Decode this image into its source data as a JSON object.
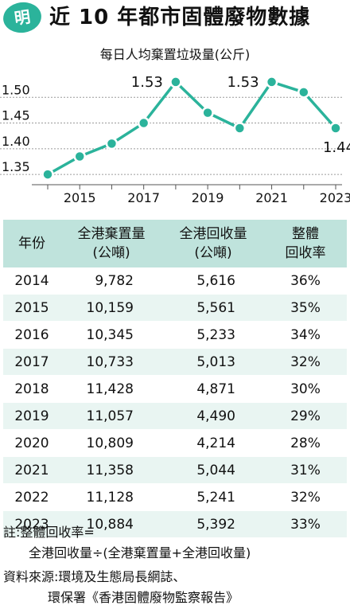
{
  "header": {
    "badge": "明",
    "title": "近 10 年都市固體廢物數據"
  },
  "chart_data": {
    "type": "line",
    "title": "每日人均棄置垃圾量(公斤)",
    "x": [
      2014,
      2015,
      2016,
      2017,
      2018,
      2019,
      2020,
      2021,
      2022,
      2023
    ],
    "values": [
      1.35,
      1.385,
      1.41,
      1.45,
      1.53,
      1.47,
      1.44,
      1.53,
      1.51,
      1.44
    ],
    "data_labels": [
      {
        "x": 2018,
        "label": "1.53"
      },
      {
        "x": 2021,
        "label": "1.53"
      },
      {
        "x": 2023,
        "label": "1.44"
      }
    ],
    "x_ticks": [
      "2015",
      "2017",
      "2019",
      "2021",
      "2023"
    ],
    "y_ticks": [
      "1.35",
      "1.40",
      "1.45",
      "1.50"
    ],
    "ylim": [
      1.33,
      1.55
    ],
    "grid": "horizontal",
    "line_color": "#2bb39b",
    "marker_fill": "#2bb39b",
    "marker_stroke": "#ffffff"
  },
  "table": {
    "headers": [
      [
        "年份"
      ],
      [
        "全港棄置量",
        "(公噸)"
      ],
      [
        "全港回收量",
        "(公噸)"
      ],
      [
        "整體",
        "回收率"
      ]
    ],
    "rows": [
      [
        "2014",
        "9,782",
        "5,616",
        "36%"
      ],
      [
        "2015",
        "10,159",
        "5,561",
        "35%"
      ],
      [
        "2016",
        "10,345",
        "5,233",
        "34%"
      ],
      [
        "2017",
        "10,733",
        "5,013",
        "32%"
      ],
      [
        "2018",
        "11,428",
        "4,871",
        "30%"
      ],
      [
        "2019",
        "11,057",
        "4,490",
        "29%"
      ],
      [
        "2020",
        "10,809",
        "4,214",
        "28%"
      ],
      [
        "2021",
        "11,358",
        "5,044",
        "31%"
      ],
      [
        "2022",
        "11,128",
        "5,241",
        "32%"
      ],
      [
        "2023",
        "10,884",
        "5,392",
        "33%"
      ]
    ],
    "header_bg": "#bfe3dc",
    "stripe_bg": "#e9f5f2"
  },
  "note": {
    "line1": "註:整體回收率=",
    "line2": "全港回收量÷(全港棄置量+全港回收量)"
  },
  "source": {
    "line1": "資料來源:環境及生態局長網誌、",
    "line2": "環保署《香港固體廢物監察報告》"
  }
}
